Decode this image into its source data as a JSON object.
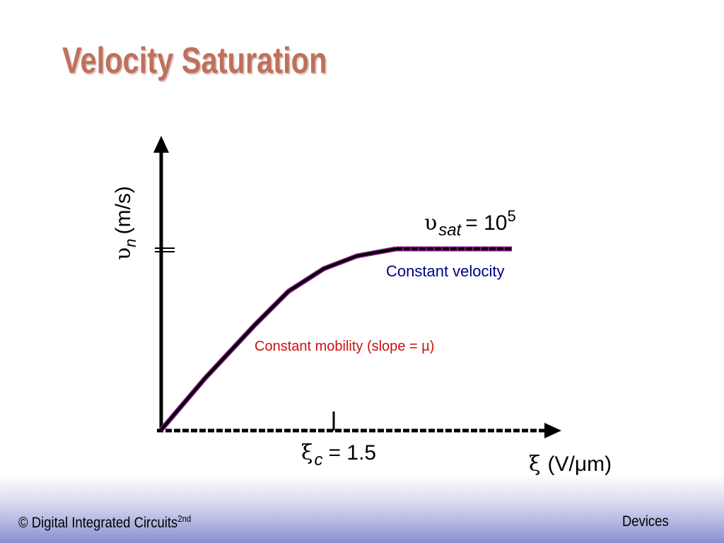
{
  "title": "Velocity Saturation",
  "diagram": {
    "y_axis_label": {
      "symbol": "υ",
      "subscript": "n",
      "unit": "(m/s)"
    },
    "x_axis_label": {
      "symbol": "ξ",
      "unit": "(V/μm)"
    },
    "saturation_label": {
      "symbol": "υ",
      "subscript": "sat",
      "equals": "= 10",
      "exponent": "5"
    },
    "critical_field_label": {
      "symbol": "ξ",
      "subscript": "c",
      "equals": "= 1.5"
    },
    "annotations": {
      "constant_velocity": "Constant velocity",
      "constant_mobility": "Constant mobility (slope = µ)"
    },
    "colors": {
      "axis": "#000000",
      "curve": "#000000",
      "curve_edge": "#8b1a8b",
      "constant_velocity_text": "#000080",
      "constant_mobility_text": "#cc1111"
    }
  },
  "footer": {
    "left_text": "© Digital Integrated Circuits",
    "left_superscript": "2nd",
    "right_text": "Devices"
  }
}
